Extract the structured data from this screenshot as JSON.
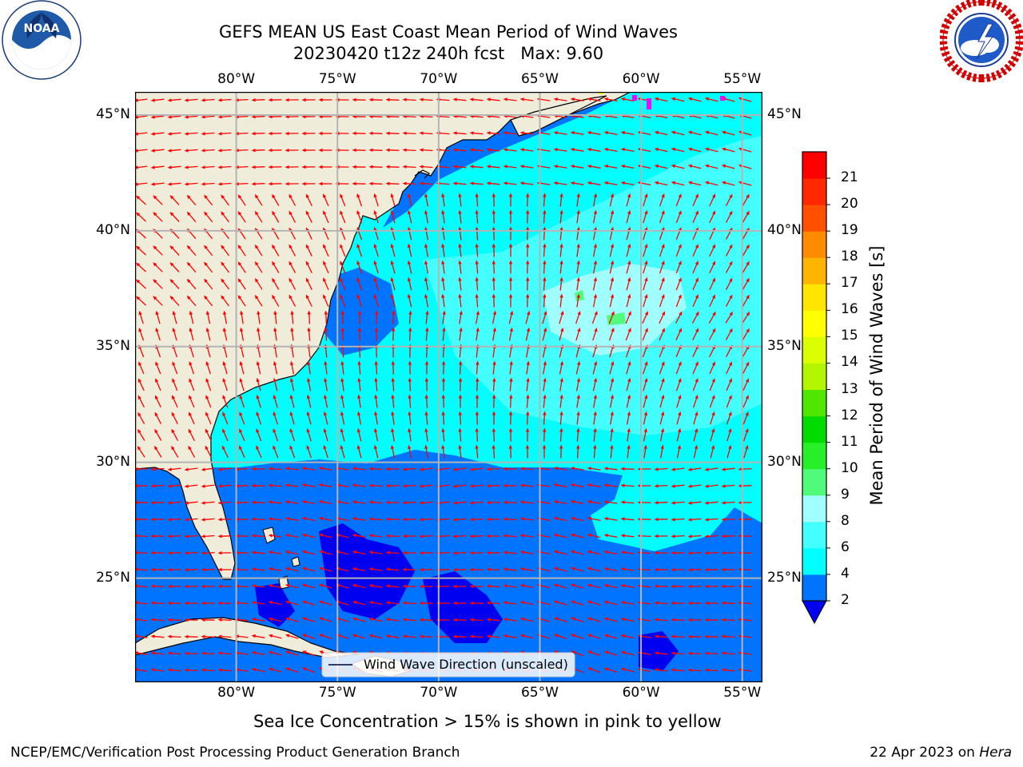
{
  "title": {
    "line1": "GEFS MEAN US East Coast Mean Period of Wind Waves",
    "line2": "20230420 t12z 240h fcst   Max: 9.60"
  },
  "logos": {
    "noaa": {
      "text": "NOAA",
      "ring_text": "NATIONAL OCEANIC AND ATMOSPHERIC ADMINISTRATION · U.S. DEPARTMENT OF COMMERCE"
    },
    "nws": {
      "ring_text": "NATIONAL WEATHER SERVICE"
    }
  },
  "map": {
    "lon_range": [
      -85,
      -54
    ],
    "lat_range": [
      20.5,
      46
    ],
    "lon_ticks": [
      {
        "lon": -80,
        "label": "80°W"
      },
      {
        "lon": -75,
        "label": "75°W"
      },
      {
        "lon": -70,
        "label": "70°W"
      },
      {
        "lon": -65,
        "label": "65°W"
      },
      {
        "lon": -60,
        "label": "60°W"
      },
      {
        "lon": -55,
        "label": "55°W"
      }
    ],
    "lat_ticks": [
      {
        "lat": 45,
        "label": "45°N"
      },
      {
        "lat": 40,
        "label": "40°N"
      },
      {
        "lat": 35,
        "label": "35°N"
      },
      {
        "lat": 30,
        "label": "30°N"
      },
      {
        "lat": 25,
        "label": "25°N"
      }
    ],
    "colors": {
      "land": "#efedda",
      "grid": "#b4b4b4",
      "arrow": "#ff0000",
      "coast": "#000000"
    },
    "legend": {
      "label": "Wind Wave Direction (unscaled)"
    }
  },
  "colorbar": {
    "label": "Mean Period of Wind Waves [s]",
    "tick_labels": [
      "2",
      "4",
      "6",
      "8",
      "9",
      "10",
      "11",
      "12",
      "13",
      "14",
      "15",
      "16",
      "17",
      "18",
      "19",
      "20",
      "21"
    ],
    "colors": [
      "#0073ff",
      "#00ffff",
      "#44ffff",
      "#a0ffff",
      "#50fa7a",
      "#28f028",
      "#00dc00",
      "#50e600",
      "#b4f500",
      "#dcff00",
      "#ffff00",
      "#ffe600",
      "#ffb400",
      "#ff8c00",
      "#ff5000",
      "#ff2800",
      "#ff0000"
    ],
    "under_color": "#0000f0"
  },
  "caption": "Sea Ice Concentration > 15% is shown in pink to yellow",
  "footer": {
    "left": "NCEP/EMC/Verification Post Processing Product Generation Branch",
    "right_prefix": "22 Apr 2023 on ",
    "right_italic": "Hera"
  }
}
